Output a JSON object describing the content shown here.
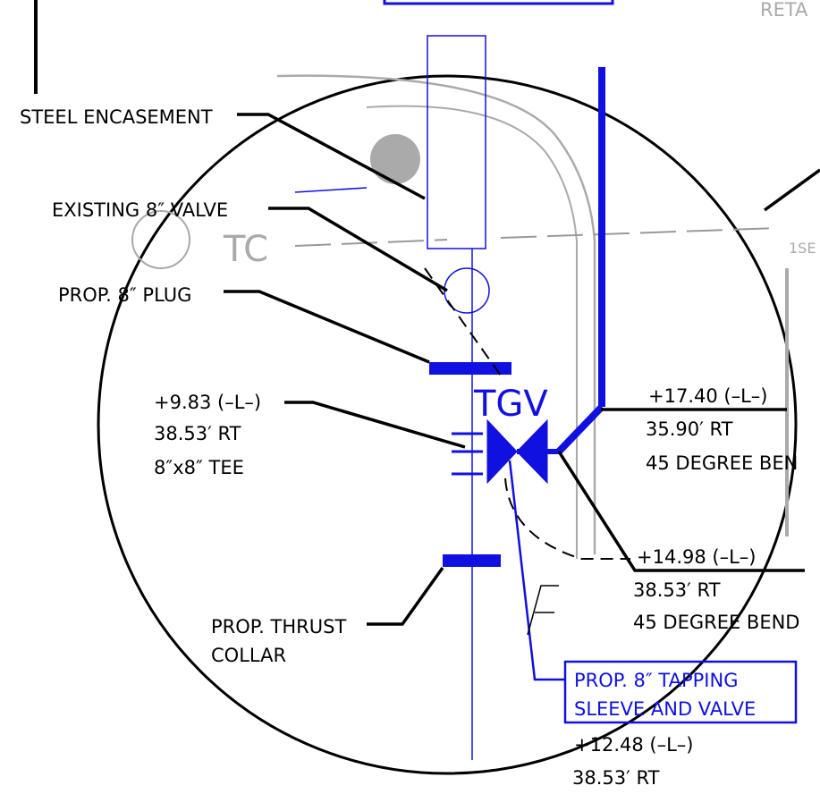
{
  "background_text": {
    "top_right": "RETA",
    "tc": "TC",
    "right_edge": "1SE"
  },
  "tag": "TGV",
  "callouts": {
    "steel_encasement": "STEEL  ENCASEMENT",
    "existing_valve": "EXISTING   8″  VALVE",
    "plug": "PROP. 8″  PLUG",
    "tee": [
      "+9.83  (–L–)",
      "38.53′ RT",
      "8″x8″  TEE"
    ],
    "bend_upper": [
      "+17.40  (–L–)",
      "35.90′ RT",
      "45  DEGREE  BEN"
    ],
    "bend_lower": [
      "+14.98  (–L–)",
      "38.53′ RT",
      "45  DEGREE  BEND"
    ],
    "thrust_collar": [
      "PROP. THRUST",
      "COLLAR"
    ],
    "tapping_sleeve": [
      "PROP. 8″  TAPPING",
      "SLEEVE  AND  VALVE"
    ],
    "bottom": [
      "+12.48  (–L–)",
      "38.53′ RT"
    ]
  }
}
